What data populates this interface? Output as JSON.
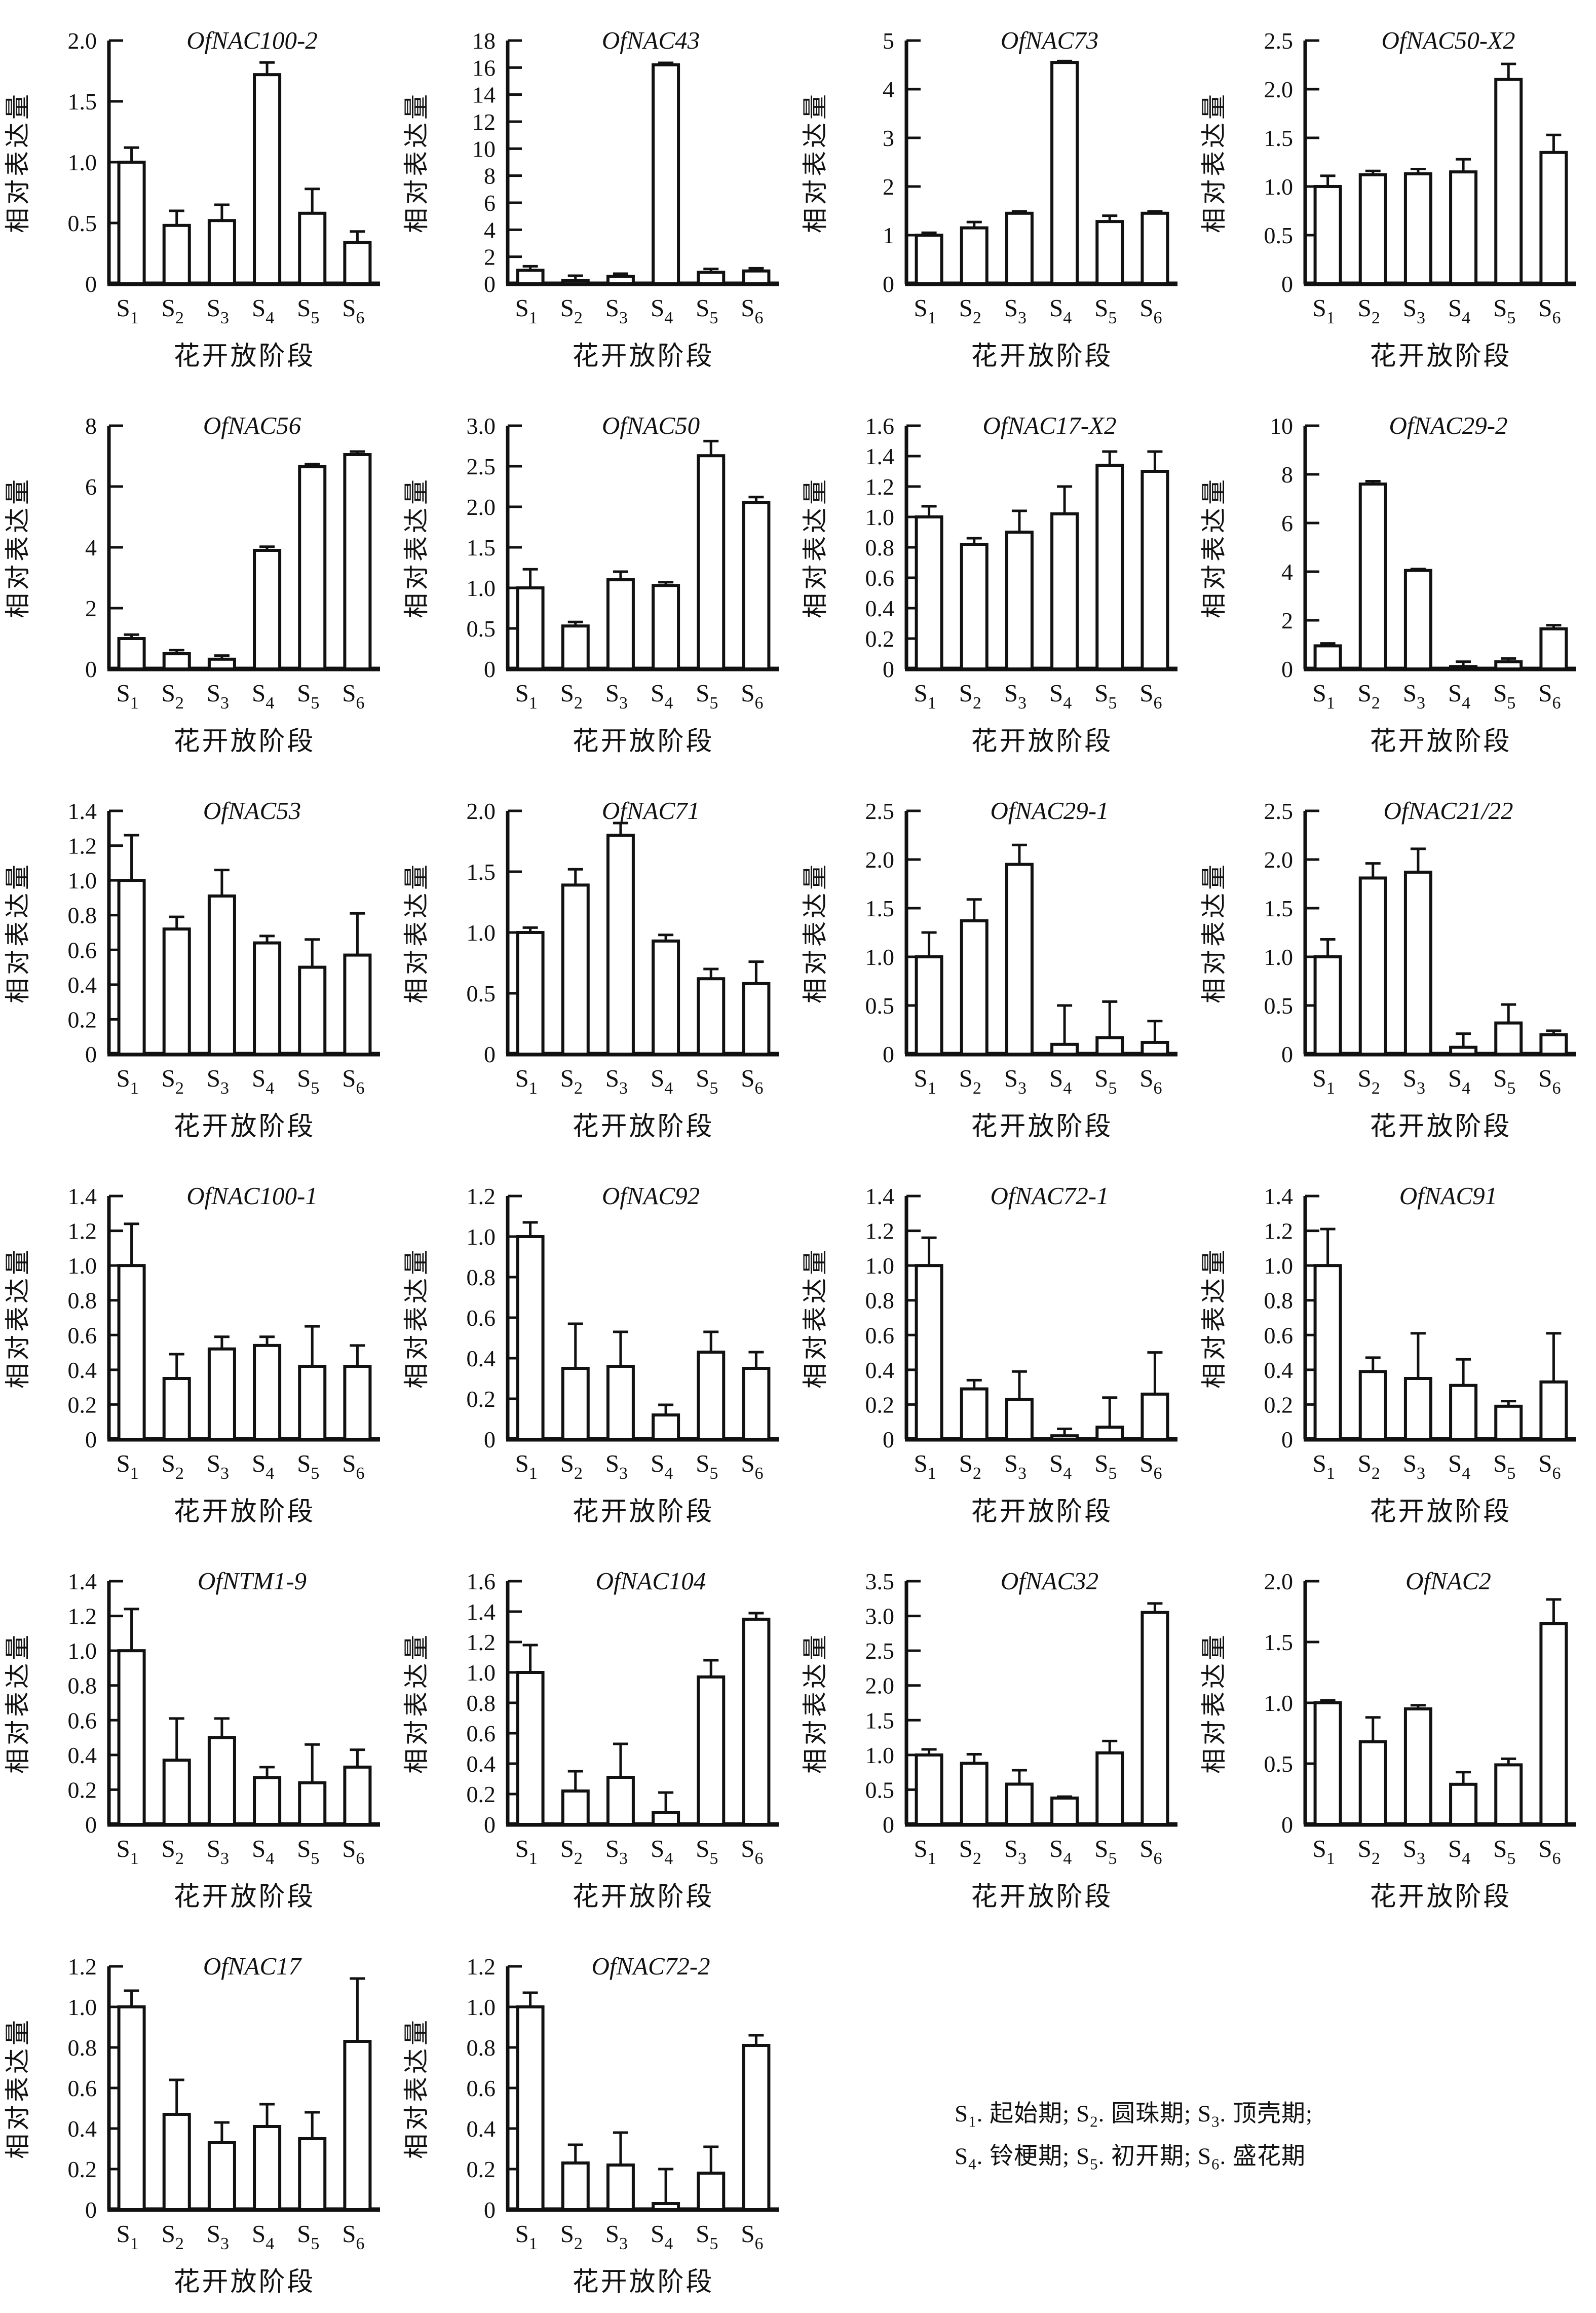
{
  "chart_data": {
    "type": "bar",
    "shared": {
      "ylabel": "相对表达量",
      "xlabel": "花开放阶段",
      "categories": [
        "S1",
        "S2",
        "S3",
        "S4",
        "S5",
        "S6"
      ],
      "bar_fill": "#ffffff",
      "stroke_color": "#111111",
      "grid": false,
      "error_bars": "upper",
      "legend_position": "none"
    },
    "charts": [
      {
        "title": "OfNAC100-2",
        "ymax": 2.0,
        "yticks": [
          "0",
          "0.5",
          "1.0",
          "1.5",
          "2.0"
        ],
        "values": [
          1.0,
          0.48,
          0.52,
          1.72,
          0.58,
          0.34
        ],
        "errors": [
          0.12,
          0.12,
          0.13,
          0.1,
          0.2,
          0.09
        ]
      },
      {
        "title": "OfNAC43",
        "ymax": 18,
        "yticks": [
          "0",
          "2",
          "4",
          "6",
          "8",
          "10",
          "12",
          "14",
          "16",
          "18"
        ],
        "values": [
          1.0,
          0.25,
          0.55,
          16.2,
          0.85,
          0.95
        ],
        "errors": [
          0.3,
          0.35,
          0.2,
          0.15,
          0.25,
          0.2
        ]
      },
      {
        "title": "OfNAC73",
        "ymax": 5,
        "yticks": [
          "0",
          "1",
          "2",
          "3",
          "4",
          "5"
        ],
        "values": [
          1.0,
          1.15,
          1.45,
          4.55,
          1.28,
          1.45
        ],
        "errors": [
          0.05,
          0.12,
          0.04,
          0.03,
          0.12,
          0.04
        ]
      },
      {
        "title": "OfNAC50-X2",
        "ymax": 2.5,
        "yticks": [
          "0",
          "0.5",
          "1.0",
          "1.5",
          "2.0",
          "2.5"
        ],
        "values": [
          1.0,
          1.12,
          1.13,
          1.15,
          2.1,
          1.35
        ],
        "errors": [
          0.11,
          0.04,
          0.05,
          0.13,
          0.16,
          0.18
        ]
      },
      {
        "title": "OfNAC56",
        "ymax": 8,
        "yticks": [
          "0",
          "2",
          "4",
          "6",
          "8"
        ],
        "values": [
          1.0,
          0.5,
          0.32,
          3.9,
          6.65,
          7.05
        ],
        "errors": [
          0.13,
          0.12,
          0.12,
          0.12,
          0.09,
          0.1
        ]
      },
      {
        "title": "OfNAC50",
        "ymax": 3.0,
        "yticks": [
          "0",
          "0.5",
          "1.0",
          "1.5",
          "2.0",
          "2.5",
          "3.0"
        ],
        "values": [
          1.0,
          0.53,
          1.1,
          1.03,
          2.63,
          2.05
        ],
        "errors": [
          0.23,
          0.05,
          0.1,
          0.04,
          0.18,
          0.07
        ]
      },
      {
        "title": "OfNAC17-X2",
        "ymax": 1.6,
        "yticks": [
          "0",
          "0.2",
          "0.4",
          "0.6",
          "0.8",
          "1.0",
          "1.2",
          "1.4",
          "1.6"
        ],
        "values": [
          1.0,
          0.82,
          0.9,
          1.02,
          1.34,
          1.3
        ],
        "errors": [
          0.07,
          0.04,
          0.14,
          0.18,
          0.09,
          0.13
        ]
      },
      {
        "title": "OfNAC29-2",
        "ymax": 10,
        "yticks": [
          "0",
          "2",
          "4",
          "6",
          "8",
          "10"
        ],
        "values": [
          0.95,
          7.6,
          4.05,
          0.1,
          0.3,
          1.65
        ],
        "errors": [
          0.1,
          0.12,
          0.06,
          0.2,
          0.13,
          0.15
        ]
      },
      {
        "title": "OfNAC53",
        "ymax": 1.4,
        "yticks": [
          "0",
          "0.2",
          "0.4",
          "0.6",
          "0.8",
          "1.0",
          "1.2",
          "1.4"
        ],
        "values": [
          1.0,
          0.72,
          0.91,
          0.64,
          0.5,
          0.57
        ],
        "errors": [
          0.26,
          0.07,
          0.15,
          0.04,
          0.16,
          0.24
        ]
      },
      {
        "title": "OfNAC71",
        "ymax": 2.0,
        "yticks": [
          "0",
          "0.5",
          "1.0",
          "1.5",
          "2.0"
        ],
        "values": [
          1.0,
          1.39,
          1.8,
          0.93,
          0.62,
          0.58
        ],
        "errors": [
          0.04,
          0.13,
          0.1,
          0.05,
          0.08,
          0.18
        ]
      },
      {
        "title": "OfNAC29-1",
        "ymax": 2.5,
        "yticks": [
          "0",
          "0.5",
          "1.0",
          "1.5",
          "2.0",
          "2.5"
        ],
        "values": [
          1.0,
          1.37,
          1.95,
          0.1,
          0.17,
          0.12
        ],
        "errors": [
          0.25,
          0.22,
          0.2,
          0.4,
          0.37,
          0.22
        ]
      },
      {
        "title": "OfNAC21/22",
        "ymax": 2.5,
        "yticks": [
          "0",
          "0.5",
          "1.0",
          "1.5",
          "2.0",
          "2.5"
        ],
        "values": [
          1.0,
          1.81,
          1.87,
          0.07,
          0.32,
          0.2
        ],
        "errors": [
          0.18,
          0.15,
          0.24,
          0.14,
          0.19,
          0.04
        ]
      },
      {
        "title": "OfNAC100-1",
        "ymax": 1.4,
        "yticks": [
          "0",
          "0.2",
          "0.4",
          "0.6",
          "0.8",
          "1.0",
          "1.2",
          "1.4"
        ],
        "values": [
          1.0,
          0.35,
          0.52,
          0.54,
          0.42,
          0.42
        ],
        "errors": [
          0.24,
          0.14,
          0.07,
          0.05,
          0.23,
          0.12
        ]
      },
      {
        "title": "OfNAC92",
        "ymax": 1.2,
        "yticks": [
          "0",
          "0.2",
          "0.4",
          "0.6",
          "0.8",
          "1.0",
          "1.2"
        ],
        "values": [
          1.0,
          0.35,
          0.36,
          0.12,
          0.43,
          0.35
        ],
        "errors": [
          0.07,
          0.22,
          0.17,
          0.05,
          0.1,
          0.08
        ]
      },
      {
        "title": "OfNAC72-1",
        "ymax": 1.4,
        "yticks": [
          "0",
          "0.2",
          "0.4",
          "0.6",
          "0.8",
          "1.0",
          "1.2",
          "1.4"
        ],
        "values": [
          1.0,
          0.29,
          0.23,
          0.02,
          0.07,
          0.26
        ],
        "errors": [
          0.16,
          0.05,
          0.16,
          0.04,
          0.17,
          0.24
        ]
      },
      {
        "title": "OfNAC91",
        "ymax": 1.4,
        "yticks": [
          "0",
          "0.2",
          "0.4",
          "0.6",
          "0.8",
          "1.0",
          "1.2",
          "1.4"
        ],
        "values": [
          1.0,
          0.39,
          0.35,
          0.31,
          0.19,
          0.33
        ],
        "errors": [
          0.21,
          0.08,
          0.26,
          0.15,
          0.03,
          0.28
        ]
      },
      {
        "title": "OfNTM1-9",
        "ymax": 1.4,
        "yticks": [
          "0",
          "0.2",
          "0.4",
          "0.6",
          "0.8",
          "1.0",
          "1.2",
          "1.4"
        ],
        "values": [
          1.0,
          0.37,
          0.5,
          0.27,
          0.24,
          0.33
        ],
        "errors": [
          0.24,
          0.24,
          0.11,
          0.06,
          0.22,
          0.1
        ]
      },
      {
        "title": "OfNAC104",
        "ymax": 1.6,
        "yticks": [
          "0",
          "0.2",
          "0.4",
          "0.6",
          "0.8",
          "1.0",
          "1.2",
          "1.4",
          "1.6"
        ],
        "values": [
          1.0,
          0.22,
          0.31,
          0.08,
          0.97,
          1.35
        ],
        "errors": [
          0.18,
          0.13,
          0.22,
          0.13,
          0.11,
          0.04
        ]
      },
      {
        "title": "OfNAC32",
        "ymax": 3.5,
        "yticks": [
          "0",
          "0.5",
          "1.0",
          "1.5",
          "2.0",
          "2.5",
          "3.0",
          "3.5"
        ],
        "values": [
          1.0,
          0.88,
          0.58,
          0.38,
          1.03,
          3.05
        ],
        "errors": [
          0.08,
          0.13,
          0.2,
          0.02,
          0.17,
          0.13
        ]
      },
      {
        "title": "OfNAC2",
        "ymax": 2.0,
        "yticks": [
          "0",
          "0.5",
          "1.0",
          "1.5",
          "2.0"
        ],
        "values": [
          1.0,
          0.68,
          0.95,
          0.33,
          0.49,
          1.65
        ],
        "errors": [
          0.02,
          0.2,
          0.03,
          0.1,
          0.05,
          0.2
        ]
      },
      {
        "title": "OfNAC17",
        "ymax": 1.2,
        "yticks": [
          "0",
          "0.2",
          "0.4",
          "0.6",
          "0.8",
          "1.0",
          "1.2"
        ],
        "values": [
          1.0,
          0.47,
          0.33,
          0.41,
          0.35,
          0.83
        ],
        "errors": [
          0.08,
          0.17,
          0.1,
          0.11,
          0.13,
          0.31
        ]
      },
      {
        "title": "OfNAC72-2",
        "ymax": 1.2,
        "yticks": [
          "0",
          "0.2",
          "0.4",
          "0.6",
          "0.8",
          "1.0",
          "1.2"
        ],
        "values": [
          1.0,
          0.23,
          0.22,
          0.03,
          0.18,
          0.81
        ],
        "errors": [
          0.07,
          0.09,
          0.16,
          0.17,
          0.13,
          0.05
        ]
      }
    ]
  },
  "legend": {
    "items": [
      {
        "stage": "S1",
        "name": "起始期"
      },
      {
        "stage": "S2",
        "name": "圆珠期"
      },
      {
        "stage": "S3",
        "name": "顶壳期"
      },
      {
        "stage": "S4",
        "name": "铃梗期"
      },
      {
        "stage": "S5",
        "name": "初开期"
      },
      {
        "stage": "S6",
        "name": "盛花期"
      }
    ],
    "item_separator": "; ",
    "stage_name_separator": ". ",
    "items_per_line": 3
  }
}
